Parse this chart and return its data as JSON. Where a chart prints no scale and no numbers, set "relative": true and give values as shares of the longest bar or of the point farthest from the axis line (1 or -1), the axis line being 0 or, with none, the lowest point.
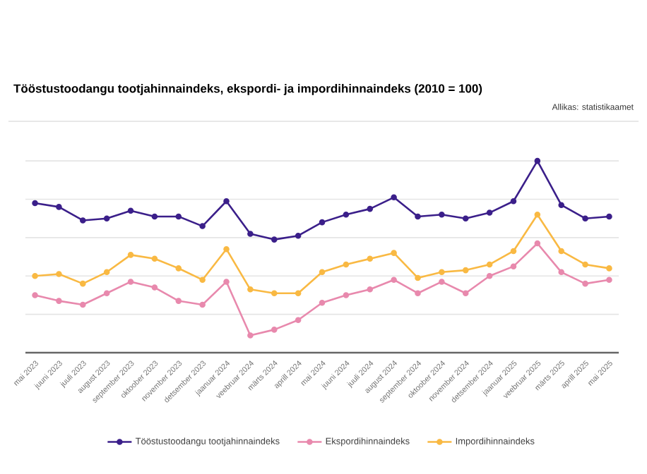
{
  "chart_data": {
    "type": "line",
    "title": "Tööstustoodangu tootjahinnaindeks, ekspordi- ja impordihinnaindeks (2010 = 100)",
    "annotations": [
      "Allikas: statistikaamet"
    ],
    "categories": [
      "mai 2023",
      "juuni 2023",
      "juuli 2023",
      "august 2023",
      "september 2023",
      "oktoober 2023",
      "november 2023",
      "detsember 2023",
      "jaanuar 2024",
      "veebruar 2024",
      "märts 2024",
      "aprill 2024",
      "mai 2024",
      "juuni 2024",
      "juuli 2024",
      "august 2024",
      "september 2024",
      "oktoober 2024",
      "november 2024",
      "detsember 2024",
      "jaanuar 2025",
      "veebruar 2025",
      "märts 2025",
      "aprill 2025",
      "mai 2025"
    ],
    "relative": true,
    "grid": "y",
    "legend": "bottom",
    "marker": "circle",
    "line_style": "solid",
    "series": [
      {
        "name": "Tööstustoodangu tootjahinnaindeks",
        "color": "#3b1f8a",
        "values": [
          0.78,
          0.76,
          0.69,
          0.7,
          0.74,
          0.71,
          0.71,
          0.66,
          0.79,
          0.62,
          0.59,
          0.61,
          0.68,
          0.72,
          0.75,
          0.81,
          0.71,
          0.72,
          0.7,
          0.73,
          0.79,
          1,
          0.77,
          0.7,
          0.71
        ]
      },
      {
        "name": "Ekspordihinnaindeks",
        "color": "#e889ad",
        "values": [
          0.3,
          0.27,
          0.25,
          0.31,
          0.37,
          0.34,
          0.27,
          0.25,
          0.37,
          0.09,
          0.12,
          0.17,
          0.26,
          0.3,
          0.33,
          0.38,
          0.31,
          0.37,
          0.31,
          0.4,
          0.45,
          0.57,
          0.42,
          0.36,
          0.38
        ]
      },
      {
        "name": "Impordihinnaindeks",
        "color": "#f9b943",
        "values": [
          0.4,
          0.41,
          0.36,
          0.42,
          0.51,
          0.49,
          0.44,
          0.38,
          0.54,
          0.33,
          0.31,
          0.31,
          0.42,
          0.46,
          0.49,
          0.52,
          0.39,
          0.42,
          0.43,
          0.46,
          0.53,
          0.72,
          0.53,
          0.46,
          0.44
        ]
      }
    ]
  }
}
